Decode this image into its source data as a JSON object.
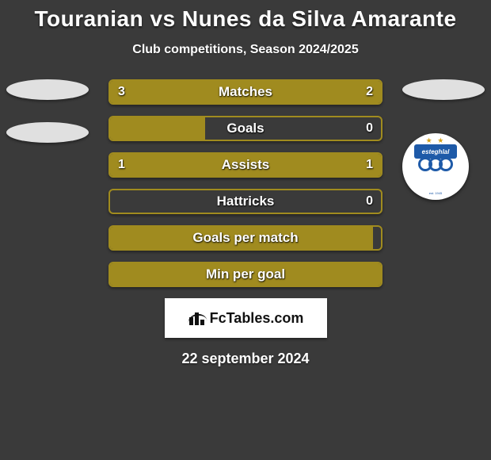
{
  "title": "Touranian vs Nunes da Silva Amarante",
  "subtitle": "Club competitions, Season 2024/2025",
  "date": "22 september 2024",
  "logo_text": "FcTables.com",
  "colors": {
    "background": "#3a3a3a",
    "bar_border": "#a08b1f",
    "bar_empty": "#a08b1f",
    "text": "#ffffff",
    "left_series": "#a08b1f",
    "right_series": "#a08b1f",
    "badge_blue": "#1e5aa8",
    "badge_gold": "#d4a017",
    "white": "#ffffff"
  },
  "bars": [
    {
      "label": "Matches",
      "left": "3",
      "right": "2",
      "left_pct": 60,
      "right_pct": 40,
      "show_vals": true
    },
    {
      "label": "Goals",
      "left": "",
      "right": "0",
      "left_pct": 35,
      "right_pct": 0,
      "show_vals": true
    },
    {
      "label": "Assists",
      "left": "1",
      "right": "1",
      "left_pct": 50,
      "right_pct": 50,
      "show_vals": true
    },
    {
      "label": "Hattricks",
      "left": "",
      "right": "0",
      "left_pct": 0,
      "right_pct": 0,
      "show_vals": true
    },
    {
      "label": "Goals per match",
      "left": "",
      "right": "",
      "left_pct": 97,
      "right_pct": 0,
      "show_vals": false
    },
    {
      "label": "Min per goal",
      "left": "",
      "right": "",
      "left_pct": 100,
      "right_pct": 0,
      "show_vals": false
    }
  ],
  "right_badge": {
    "text": "esteghlal",
    "stars": "★ ★",
    "est": "est. 1945"
  }
}
